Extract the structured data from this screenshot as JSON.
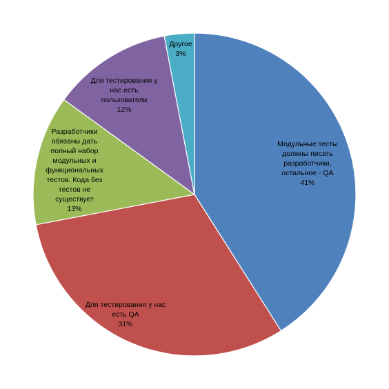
{
  "chart_data": {
    "type": "pie",
    "title": "",
    "legend": "none",
    "start_angle_deg": 0,
    "direction": "clockwise",
    "slices": [
      {
        "label": "Модульные тесты должны писать разработчики, остальное - QA",
        "value": 41,
        "value_label": "41%",
        "color": "#4F81BD"
      },
      {
        "label": "Для тестирования у нас есть QA",
        "value": 31,
        "value_label": "31%",
        "color": "#C0504D"
      },
      {
        "label": "Разработчики обязаны дать полный набор модульных и функциональных тестов. Кода без тестов не существует",
        "value": 13,
        "value_label": "13%",
        "color": "#9BBB59"
      },
      {
        "label": "Для тестирования у нас есть пользователи",
        "value": 12,
        "value_label": "12%",
        "color": "#8064A2"
      },
      {
        "label": "Другое",
        "value": 3,
        "value_label": "3%",
        "color": "#4BACC6"
      }
    ]
  }
}
